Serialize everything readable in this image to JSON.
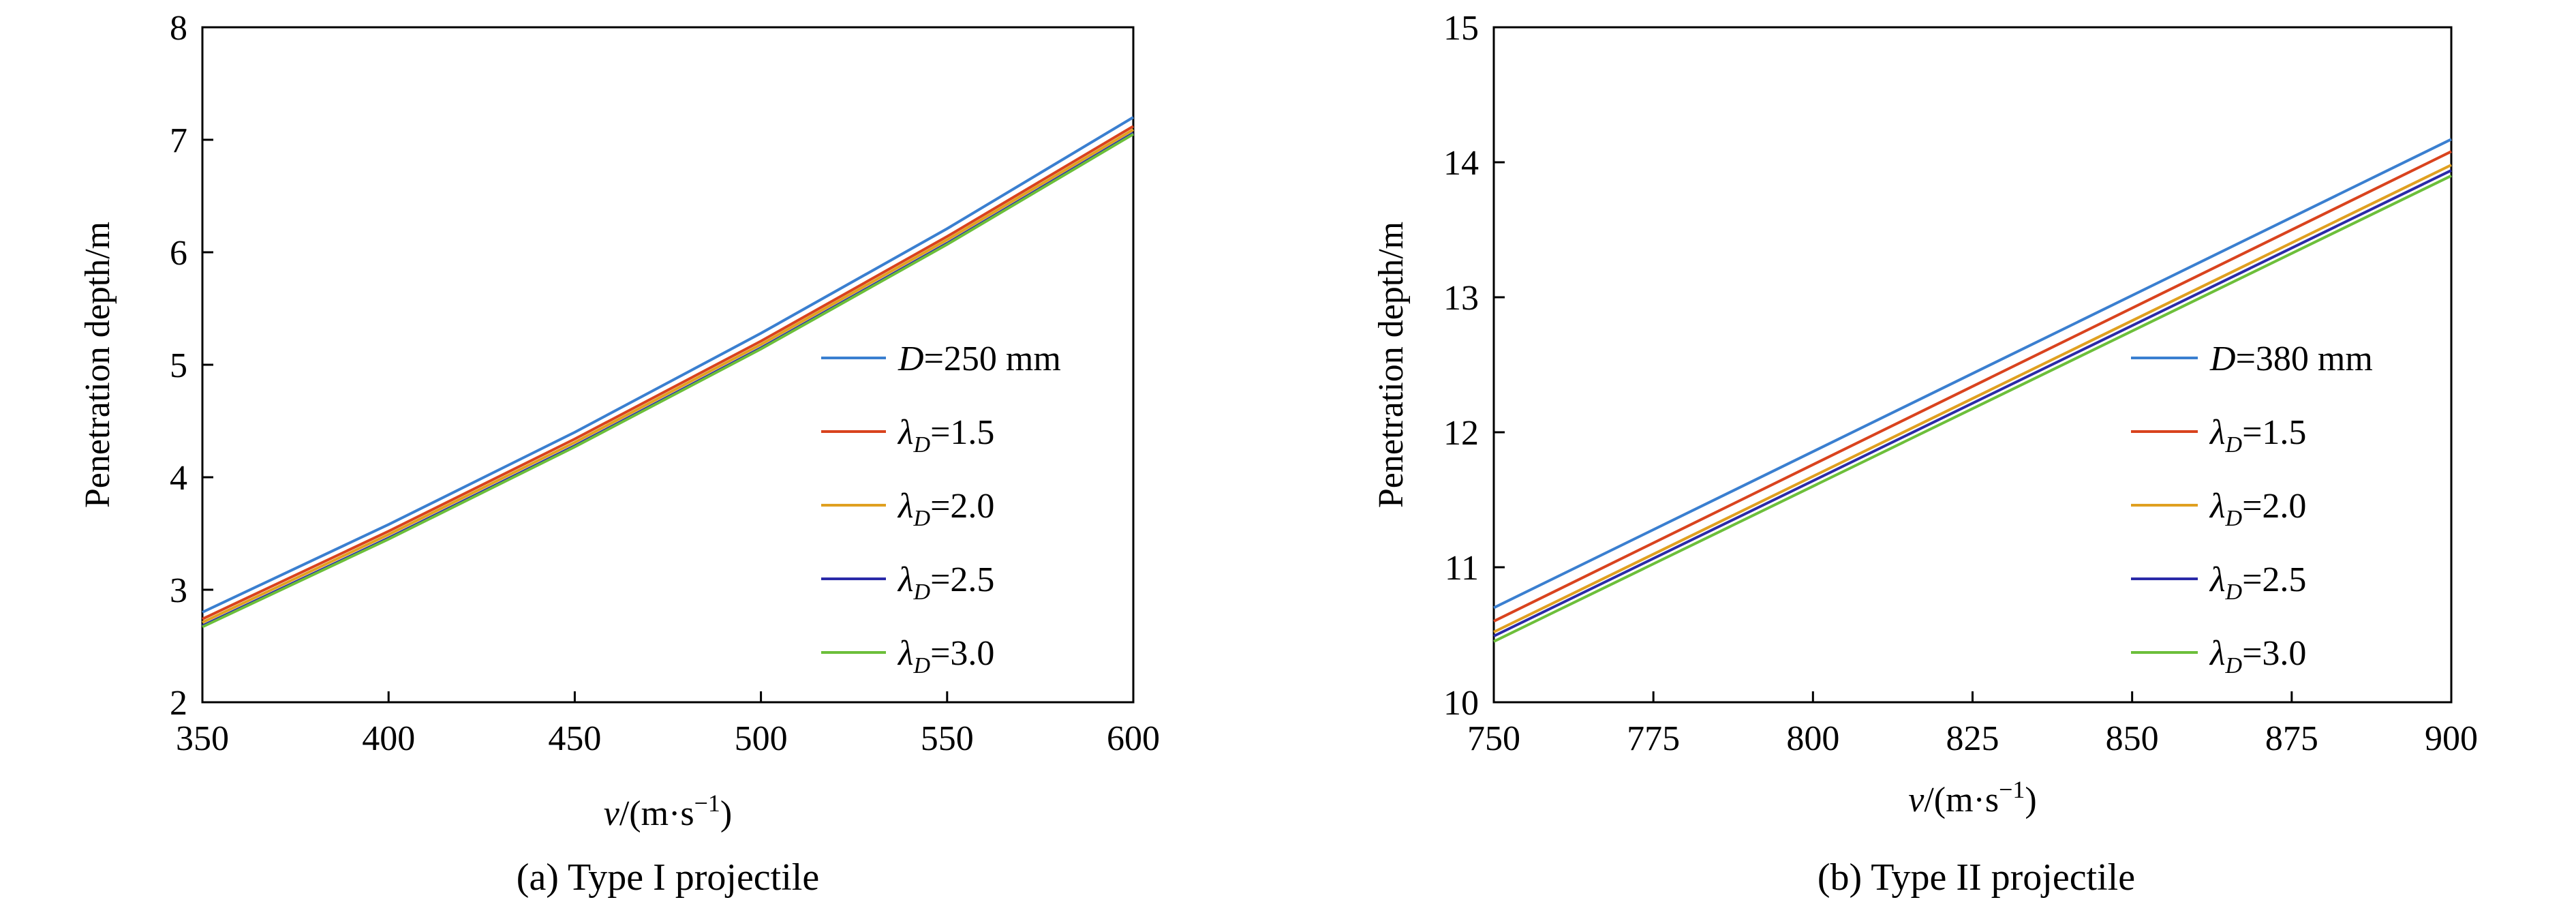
{
  "chart_data": [
    {
      "type": "line",
      "caption": "(a) Type I projectile",
      "xlabel": {
        "var": "v",
        "rest": "/(m·s",
        "sup": "−1",
        "end": ")"
      },
      "ylabel": "Penetration depth/m",
      "xlim": [
        350,
        600
      ],
      "ylim": [
        2,
        8
      ],
      "xticks": [
        "350",
        "400",
        "450",
        "500",
        "550",
        "600"
      ],
      "yticks": [
        "2",
        "3",
        "4",
        "5",
        "6",
        "7",
        "8"
      ],
      "legend_position": "lower-right",
      "series": [
        {
          "name": "D=250 mm",
          "label_var": "D",
          "label_sub": "",
          "label_rest": "=250 mm",
          "color": "#3a7fd0",
          "x": [
            350,
            400,
            450,
            500,
            550,
            600
          ],
          "values": [
            2.8,
            3.58,
            4.4,
            5.28,
            6.21,
            7.2
          ]
        },
        {
          "name": "λD=1.5",
          "label_var": "λ",
          "label_sub": "D",
          "label_rest": "=1.5",
          "color": "#d9431e",
          "x": [
            350,
            400,
            450,
            500,
            550,
            600
          ],
          "values": [
            2.74,
            3.52,
            4.34,
            5.21,
            6.14,
            7.12
          ]
        },
        {
          "name": "λD=2.0",
          "label_var": "λ",
          "label_sub": "D",
          "label_rest": "=2.0",
          "color": "#e0a020",
          "x": [
            350,
            400,
            450,
            500,
            550,
            600
          ],
          "values": [
            2.71,
            3.49,
            4.31,
            5.18,
            6.11,
            7.09
          ]
        },
        {
          "name": "λD=2.5",
          "label_var": "λ",
          "label_sub": "D",
          "label_rest": "=2.5",
          "color": "#2a2aa8",
          "x": [
            350,
            400,
            450,
            500,
            550,
            600
          ],
          "values": [
            2.68,
            3.46,
            4.28,
            5.15,
            6.08,
            7.06
          ]
        },
        {
          "name": "λD=3.0",
          "label_var": "λ",
          "label_sub": "D",
          "label_rest": "=3.0",
          "color": "#6cbf3a",
          "x": [
            350,
            400,
            450,
            500,
            550,
            600
          ],
          "values": [
            2.67,
            3.45,
            4.27,
            5.14,
            6.07,
            7.05
          ]
        }
      ]
    },
    {
      "type": "line",
      "caption": "(b) Type II projectile",
      "xlabel": {
        "var": "v",
        "rest": "/(m·s",
        "sup": "−1",
        "end": ")"
      },
      "ylabel": "Penetration depth/m",
      "xlim": [
        750,
        900
      ],
      "ylim": [
        10,
        15
      ],
      "xticks": [
        "750",
        "775",
        "800",
        "825",
        "850",
        "875",
        "900"
      ],
      "yticks": [
        "10",
        "11",
        "12",
        "13",
        "14",
        "15"
      ],
      "legend_position": "lower-right",
      "series": [
        {
          "name": "D=380 mm",
          "label_var": "D",
          "label_sub": "",
          "label_rest": "=380 mm",
          "color": "#3a7fd0",
          "x": [
            750,
            900
          ],
          "values": [
            10.7,
            14.17
          ]
        },
        {
          "name": "λD=1.5",
          "label_var": "λ",
          "label_sub": "D",
          "label_rest": "=1.5",
          "color": "#d9431e",
          "x": [
            750,
            900
          ],
          "values": [
            10.6,
            14.08
          ]
        },
        {
          "name": "λD=2.0",
          "label_var": "λ",
          "label_sub": "D",
          "label_rest": "=2.0",
          "color": "#e0a020",
          "x": [
            750,
            900
          ],
          "values": [
            10.52,
            13.98
          ]
        },
        {
          "name": "λD=2.5",
          "label_var": "λ",
          "label_sub": "D",
          "label_rest": "=2.5",
          "color": "#2a2aa8",
          "x": [
            750,
            900
          ],
          "values": [
            10.49,
            13.94
          ]
        },
        {
          "name": "λD=3.0",
          "label_var": "λ",
          "label_sub": "D",
          "label_rest": "=3.0",
          "color": "#6cbf3a",
          "x": [
            750,
            900
          ],
          "values": [
            10.45,
            13.9
          ]
        }
      ]
    }
  ]
}
